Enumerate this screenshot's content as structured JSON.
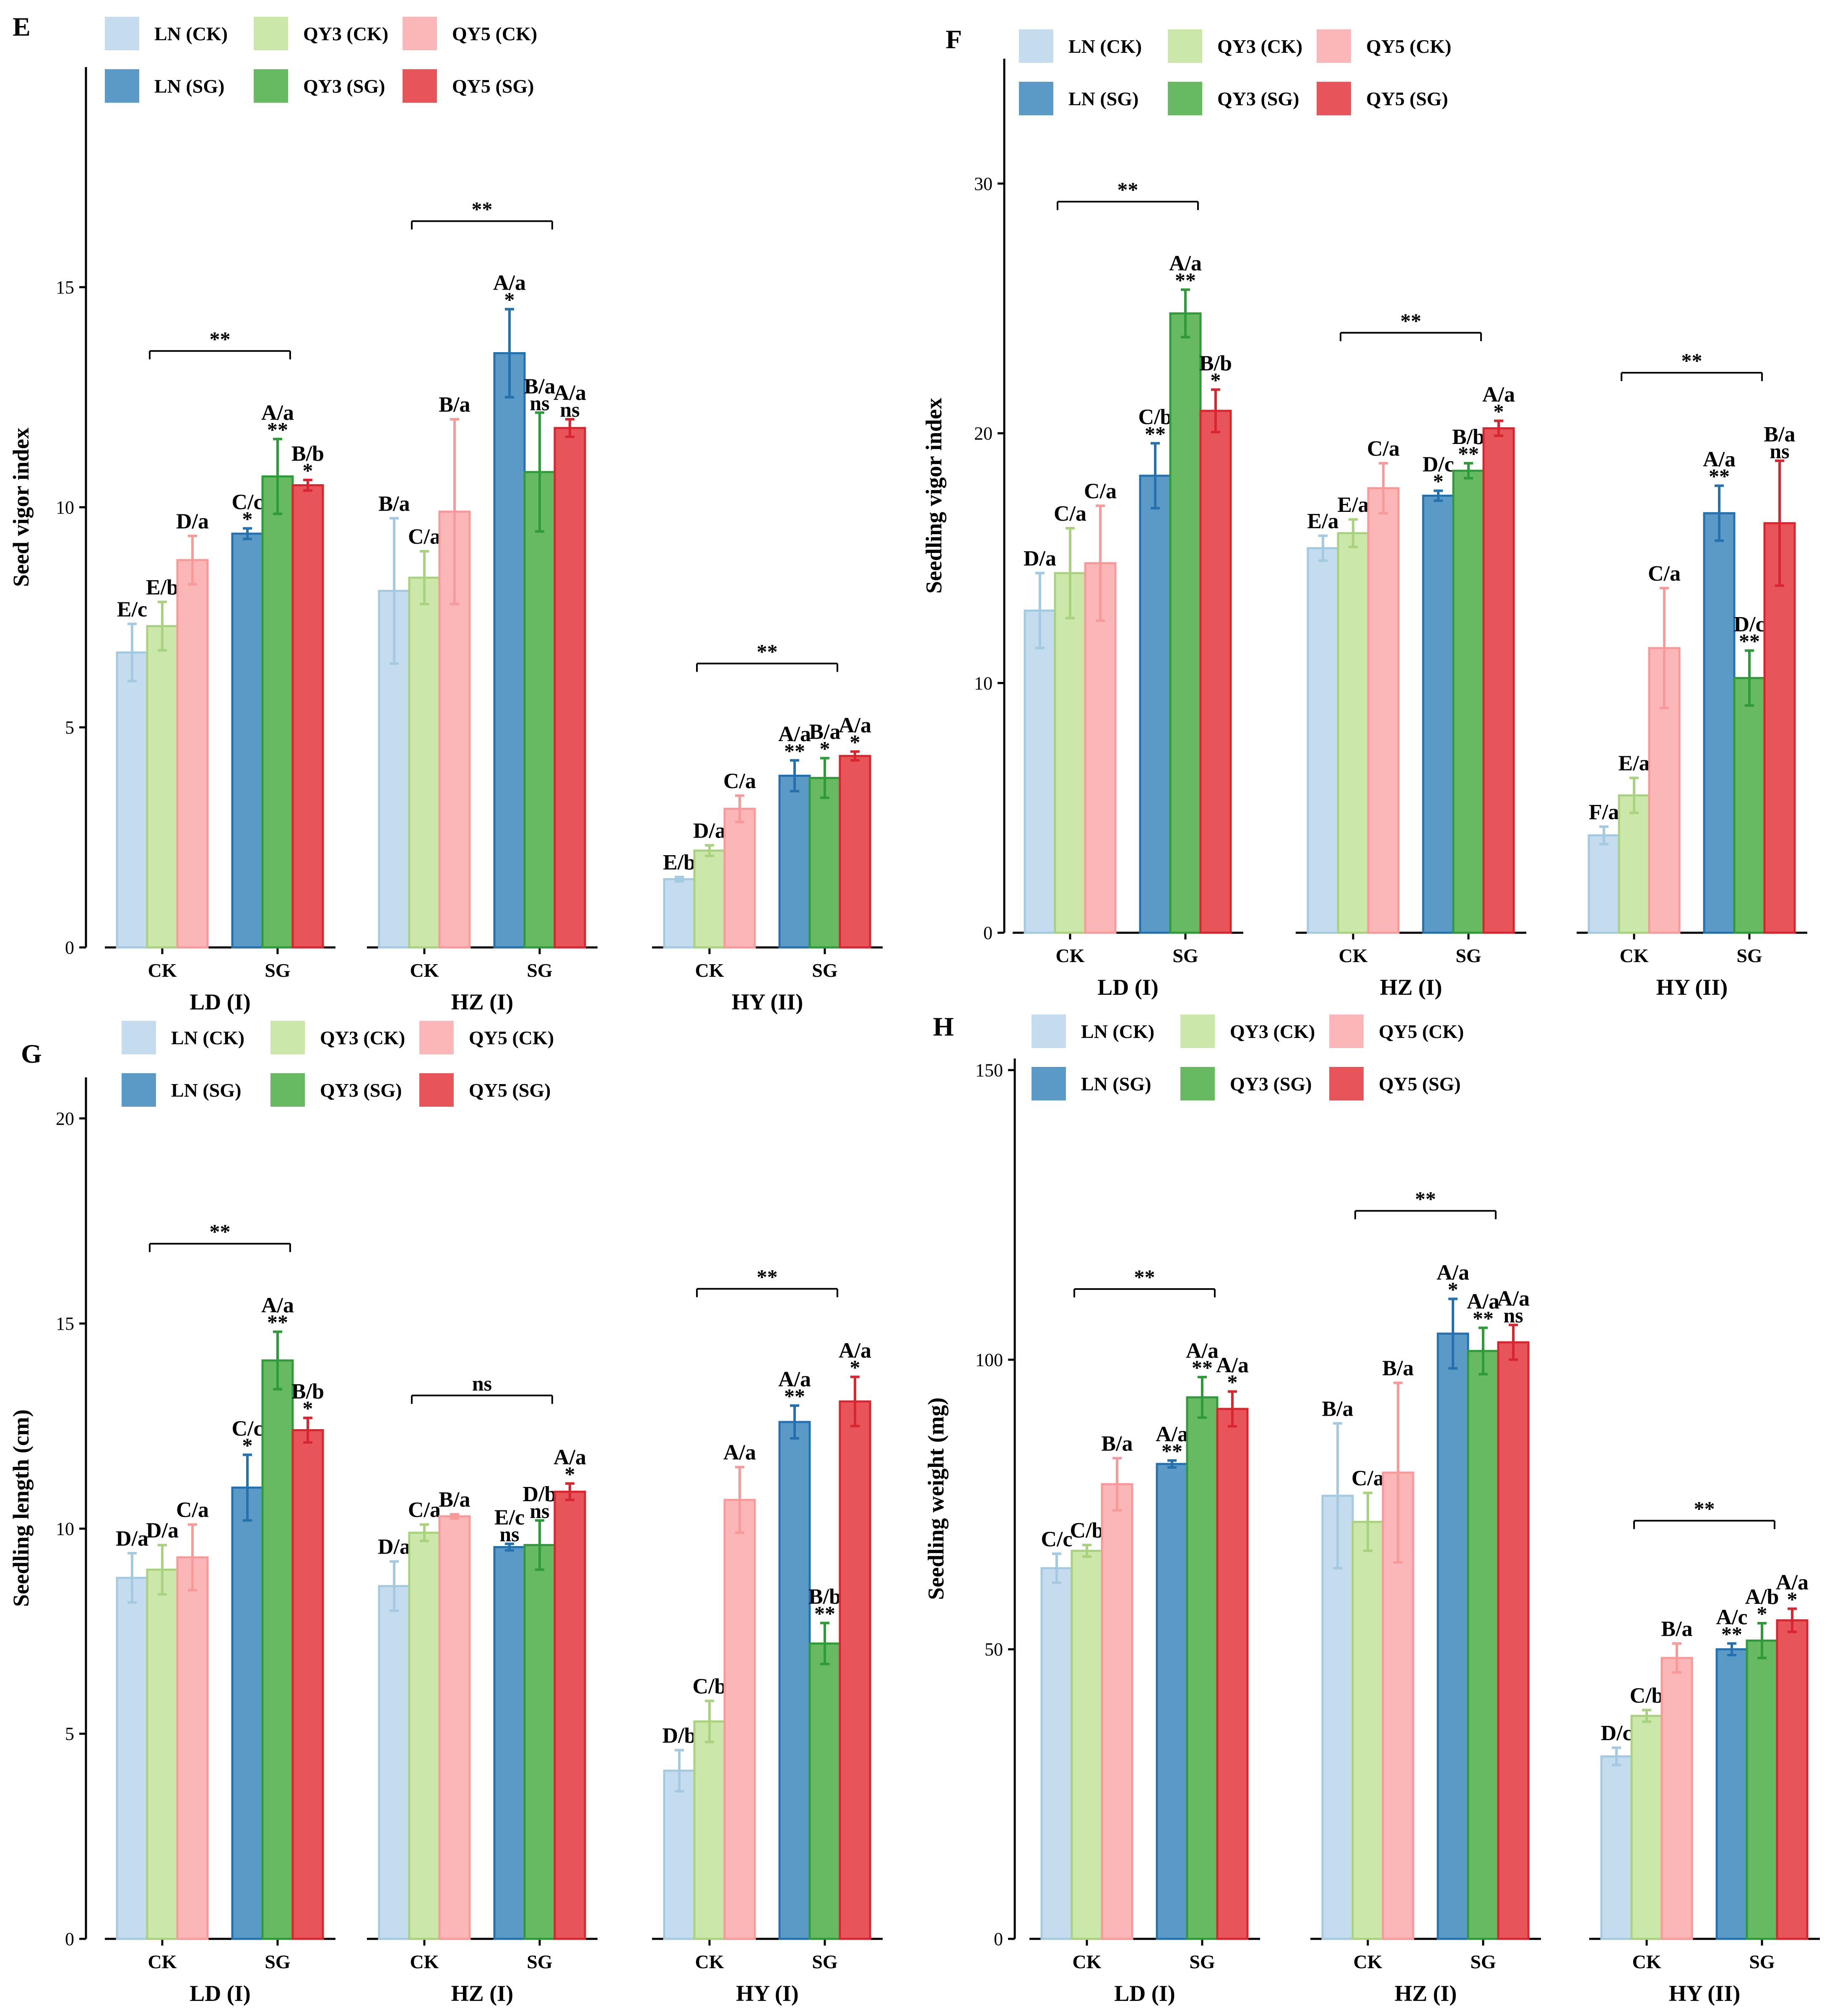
{
  "figure": {
    "legend": {
      "ck_labels": [
        "LN (CK)",
        "QY3 (CK)",
        "QY5 (CK)"
      ],
      "sg_labels": [
        "LN (SG)",
        "QY3 (SG)",
        "QY5 (SG)"
      ]
    },
    "colors": {
      "ck_fill": [
        "#c4dced",
        "#cbe7a9",
        "#fbb7b7"
      ],
      "ck_edge": [
        "#a3cae0",
        "#a9d27e",
        "#f89a9a"
      ],
      "sg_fill": [
        "#5b9ac6",
        "#67b962",
        "#e7545a"
      ],
      "sg_edge": [
        "#2471ad",
        "#2f9a39",
        "#d7262f"
      ]
    }
  },
  "chart_data": [
    {
      "panel": "E",
      "type": "bar",
      "ylabel": "Seed vigor index",
      "ylim": [
        0,
        20
      ],
      "yticks": [
        0,
        5,
        10,
        15
      ],
      "categories": [
        "CK",
        "SG"
      ],
      "groups": [
        {
          "site": "LD (I)",
          "values": [
            6.7,
            7.3,
            8.8,
            9.4,
            10.7,
            10.5
          ],
          "errors": [
            0.65,
            0.55,
            0.55,
            0.12,
            0.85,
            0.12
          ],
          "letters": [
            "E/c",
            "E/b",
            "D/a",
            "C/c",
            "A/a",
            "B/b"
          ],
          "stars": [
            "*",
            "**",
            "*"
          ],
          "comparison": "**"
        },
        {
          "site": "HZ (I)",
          "values": [
            8.1,
            8.4,
            9.9,
            13.5,
            10.8,
            11.8
          ],
          "errors": [
            1.65,
            0.6,
            2.1,
            1.0,
            1.35,
            0.2
          ],
          "letters": [
            "B/a",
            "C/a",
            "B/a",
            "A/a",
            "B/a",
            "A/a"
          ],
          "stars": [
            "*",
            "ns",
            "ns"
          ],
          "comparison": "**"
        },
        {
          "site": "HY (II)",
          "values": [
            1.55,
            2.2,
            3.15,
            3.9,
            3.85,
            4.35
          ],
          "errors": [
            0.05,
            0.12,
            0.3,
            0.35,
            0.45,
            0.1
          ],
          "letters": [
            "E/b",
            "D/a",
            "C/a",
            "A/a",
            "B/a",
            "A/a"
          ],
          "stars": [
            "**",
            "*",
            "*"
          ],
          "comparison": "**"
        }
      ]
    },
    {
      "panel": "F",
      "type": "bar",
      "ylabel": "Seedling vigor index",
      "ylim": [
        0,
        35
      ],
      "yticks": [
        0,
        10,
        20,
        30
      ],
      "categories": [
        "CK",
        "SG"
      ],
      "groups": [
        {
          "site": "LD (I)",
          "values": [
            12.9,
            14.4,
            14.8,
            18.3,
            24.8,
            20.9
          ],
          "errors": [
            1.5,
            1.8,
            2.3,
            1.3,
            0.95,
            0.85
          ],
          "letters": [
            "D/a",
            "C/a",
            "C/a",
            "C/b",
            "A/a",
            "B/b"
          ],
          "stars": [
            "**",
            "**",
            "*"
          ],
          "comparison": "**"
        },
        {
          "site": "HZ (I)",
          "values": [
            15.4,
            16.0,
            17.8,
            17.5,
            18.5,
            20.2
          ],
          "errors": [
            0.5,
            0.55,
            1.0,
            0.2,
            0.3,
            0.3
          ],
          "letters": [
            "E/a",
            "E/a",
            "C/a",
            "D/c",
            "B/b",
            "A/a"
          ],
          "stars": [
            "*",
            "**",
            "*"
          ],
          "comparison": "**"
        },
        {
          "site": "HY (II)",
          "values": [
            3.9,
            5.5,
            11.4,
            16.8,
            10.2,
            16.4
          ],
          "errors": [
            0.35,
            0.7,
            2.4,
            1.1,
            1.1,
            2.5
          ],
          "letters": [
            "F/a",
            "E/a",
            "C/a",
            "A/a",
            "D/c",
            "B/a"
          ],
          "stars": [
            "**",
            "**",
            "ns"
          ],
          "comparison": "**"
        }
      ]
    },
    {
      "panel": "G",
      "type": "bar",
      "ylabel": "Seedling length (cm)",
      "ylim": [
        0,
        21
      ],
      "yticks": [
        0,
        5,
        10,
        15,
        20
      ],
      "categories": [
        "CK",
        "SG"
      ],
      "groups": [
        {
          "site": "LD (I)",
          "values": [
            8.8,
            9.0,
            9.3,
            11.0,
            14.1,
            12.4
          ],
          "errors": [
            0.6,
            0.6,
            0.8,
            0.8,
            0.7,
            0.3
          ],
          "letters": [
            "D/a",
            "D/a",
            "C/a",
            "C/c",
            "A/a",
            "B/b"
          ],
          "stars": [
            "*",
            "**",
            "*"
          ],
          "comparison": "**"
        },
        {
          "site": "HZ (I)",
          "values": [
            8.6,
            9.9,
            10.3,
            9.55,
            9.6,
            10.9
          ],
          "errors": [
            0.6,
            0.2,
            0.05,
            0.08,
            0.6,
            0.2
          ],
          "letters": [
            "D/a",
            "C/a",
            "B/a",
            "E/c",
            "D/b",
            "A/a"
          ],
          "stars": [
            "ns",
            "ns",
            "*"
          ],
          "comparison": "ns"
        },
        {
          "site": "HY (I)",
          "values": [
            4.1,
            5.3,
            10.7,
            12.6,
            7.2,
            13.1
          ],
          "errors": [
            0.5,
            0.5,
            0.8,
            0.4,
            0.5,
            0.6
          ],
          "letters": [
            "D/b",
            "C/b",
            "A/a",
            "A/a",
            "B/b",
            "A/a"
          ],
          "stars": [
            "**",
            "**",
            "*"
          ],
          "comparison": "**"
        }
      ]
    },
    {
      "panel": "H",
      "type": "bar",
      "ylabel": "Seedling weight (mg)",
      "ylim": [
        0,
        152
      ],
      "yticks": [
        0,
        50,
        100,
        150
      ],
      "categories": [
        "CK",
        "SG"
      ],
      "groups": [
        {
          "site": "LD (I)",
          "values": [
            64.0,
            67.0,
            78.5,
            82.0,
            93.5,
            91.5
          ],
          "errors": [
            2.5,
            1.0,
            4.5,
            0.6,
            3.5,
            3.0
          ],
          "letters": [
            "C/c",
            "C/b",
            "B/a",
            "A/a",
            "A/a",
            "A/a"
          ],
          "stars": [
            "**",
            "**",
            "*"
          ],
          "comparison": "**"
        },
        {
          "site": "HZ (I)",
          "values": [
            76.5,
            72.0,
            80.5,
            104.5,
            101.5,
            103.0
          ],
          "errors": [
            12.5,
            5.0,
            15.5,
            6.0,
            4.0,
            3.0
          ],
          "letters": [
            "B/a",
            "C/a",
            "B/a",
            "A/a",
            "A/a",
            "A/a"
          ],
          "stars": [
            "*",
            "**",
            "ns"
          ],
          "comparison": "**"
        },
        {
          "site": "HY (II)",
          "values": [
            31.5,
            38.5,
            48.5,
            50.0,
            51.5,
            55.0
          ],
          "errors": [
            1.5,
            1.0,
            2.5,
            1.0,
            3.0,
            2.0
          ],
          "letters": [
            "D/c",
            "C/b",
            "B/a",
            "A/c",
            "A/b",
            "A/a"
          ],
          "stars": [
            "**",
            "*",
            "*"
          ],
          "comparison": "**"
        }
      ]
    }
  ]
}
